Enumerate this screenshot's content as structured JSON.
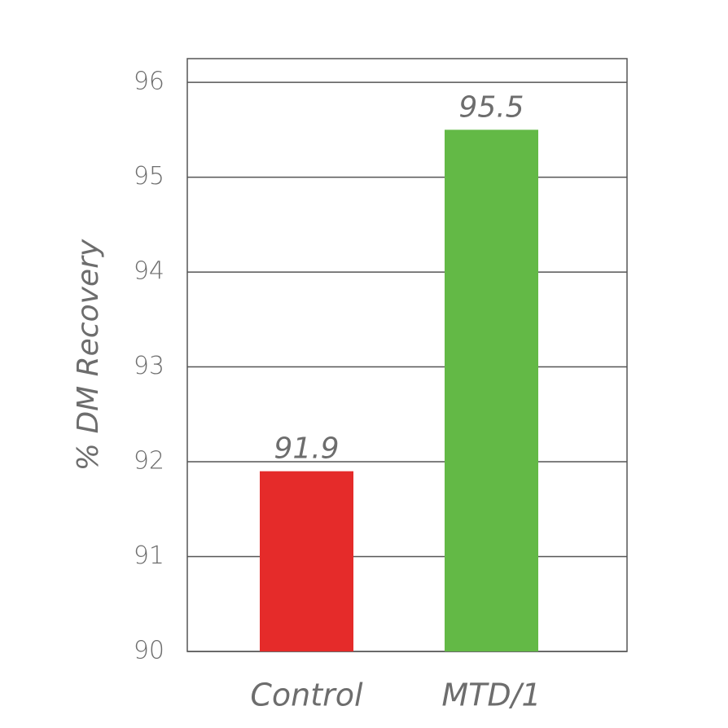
{
  "chart_data": {
    "type": "bar",
    "y_label": "% DM Recovery",
    "categories": [
      "Control",
      "MTD/1"
    ],
    "values": [
      91.9,
      95.5
    ],
    "colors": [
      "#e52b2a",
      "#63b946"
    ],
    "ylim": [
      90,
      96.25
    ],
    "yticks": [
      90,
      91,
      92,
      93,
      94,
      95,
      96
    ],
    "grid": true
  }
}
